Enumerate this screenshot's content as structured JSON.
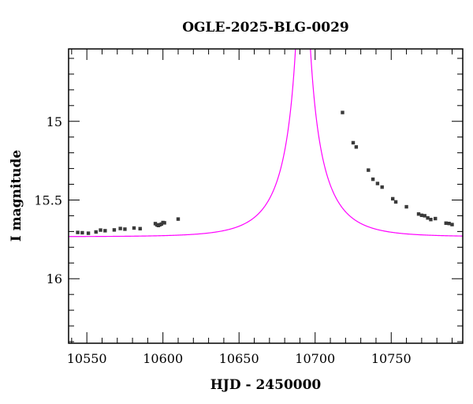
{
  "chart_data": {
    "type": "scatter",
    "title": "OGLE-2025-BLG-0029",
    "xlabel": "HJD - 2450000",
    "ylabel": "I magnitude",
    "xlim": [
      10538,
      10797
    ],
    "ylim": [
      16.41,
      14.54
    ],
    "y_inverted": true,
    "grid": false,
    "x_ticks": [
      {
        "value": 10550,
        "label": "10550"
      },
      {
        "value": 10600,
        "label": "10600"
      },
      {
        "value": 10650,
        "label": "10650"
      },
      {
        "value": 10700,
        "label": "10700"
      },
      {
        "value": 10750,
        "label": "10750"
      }
    ],
    "y_ticks": [
      {
        "value": 15,
        "label": "15"
      },
      {
        "value": 15.5,
        "label": "15.5"
      },
      {
        "value": 16,
        "label": "16"
      }
    ],
    "x_minor_step": 10,
    "y_minor_step": 0.1,
    "series": [
      {
        "kind": "points",
        "color": "#000000",
        "marker_color": "#3a3a3a",
        "x": [
          10544,
          10547,
          10551,
          10556,
          10559,
          10562,
          10568,
          10572,
          10575,
          10581,
          10585,
          10595,
          10596,
          10597,
          10598,
          10599,
          10600,
          10601,
          10610,
          10718,
          10725,
          10727,
          10735,
          10738,
          10741,
          10744,
          10751,
          10753,
          10760,
          10768,
          10770,
          10772,
          10774,
          10776,
          10779,
          10786,
          10788,
          10790
        ],
        "y": [
          15.706,
          15.708,
          15.711,
          15.703,
          15.691,
          15.695,
          15.69,
          15.681,
          15.685,
          15.678,
          15.682,
          15.65,
          15.658,
          15.662,
          15.657,
          15.653,
          15.643,
          15.645,
          15.621,
          14.944,
          15.136,
          15.163,
          15.31,
          15.368,
          15.395,
          15.418,
          15.492,
          15.512,
          15.543,
          15.589,
          15.597,
          15.6,
          15.614,
          15.624,
          15.618,
          15.647,
          15.649,
          15.656
        ],
        "error_y": 0.006
      },
      {
        "kind": "model",
        "color": "#ff00ff",
        "u0": 0.04,
        "tE": 30,
        "t0": 10692,
        "I_base": 15.7332,
        "f_s": 0.4
      }
    ]
  }
}
